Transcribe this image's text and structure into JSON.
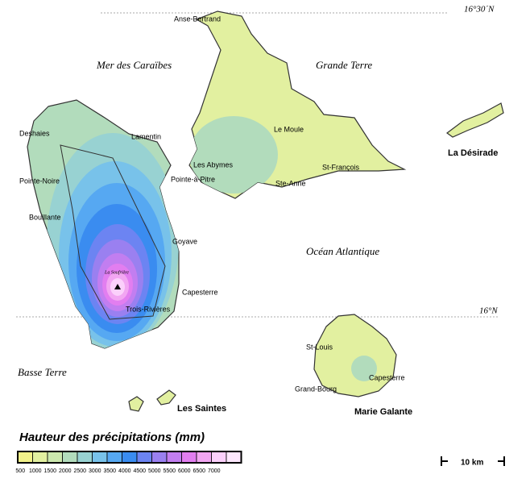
{
  "map": {
    "latitude_labels": [
      "16°30´N",
      "16°N"
    ],
    "seas": [
      "Mer des Caraïbes",
      "Grande Terre",
      "Océan Atlantique",
      "Basse Terre"
    ],
    "islands": [
      "La Désirade",
      "Les Saintes",
      "Marie Galante"
    ],
    "places": [
      "Anse-Bertrand",
      "Deshaies",
      "Lamentin",
      "Le Moule",
      "Pointe-Noire",
      "Les Abymes",
      "Pointe-à-Pitre",
      "St-François",
      "Ste-Anne",
      "Bouillante",
      "Goyave",
      "La Soufrière",
      "Capesterre",
      "Trois-Rivières",
      "St-Louis",
      "Capesterre",
      "Grand-Bourg"
    ],
    "legend": {
      "title": "Hauteur des précipitations (mm)",
      "labels": [
        500,
        1000,
        1500,
        2000,
        2500,
        3000,
        3500,
        4000,
        4500,
        5000,
        5500,
        6000,
        6500,
        7000
      ],
      "colors": [
        "#f2f28a",
        "#e2f0a0",
        "#cce8ae",
        "#b2dcbc",
        "#98d2d2",
        "#78c2ea",
        "#56a8f2",
        "#3a8cf0",
        "#6c84f2",
        "#9a80f0",
        "#c27ef0",
        "#e27ef0",
        "#f2a6f2",
        "#fbd0fb",
        "#fde8fd"
      ]
    },
    "scale_bar": "10 km"
  }
}
